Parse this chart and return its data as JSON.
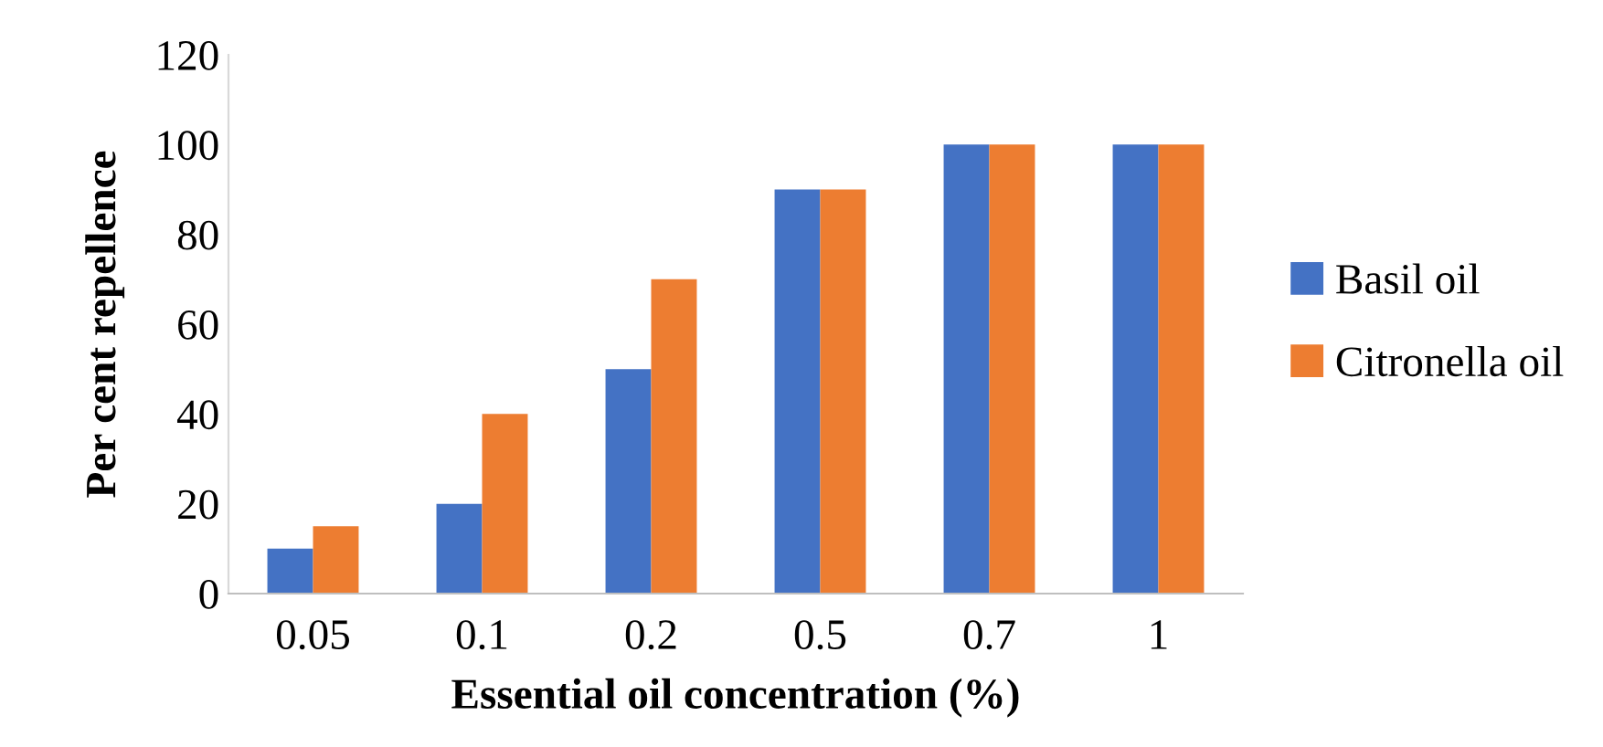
{
  "chart_data": {
    "type": "bar",
    "xlabel": "Essential oil concentration (%)",
    "ylabel": "Per cent repellence",
    "categories": [
      "0.05",
      "0.1",
      "0.2",
      "0.5",
      "0.7",
      "1"
    ],
    "series": [
      {
        "name": "Basil oil",
        "color": "#4472c4",
        "values": [
          10,
          20,
          50,
          90,
          100,
          100
        ]
      },
      {
        "name": "Citronella oil",
        "color": "#ed7d31",
        "values": [
          15,
          40,
          70,
          90,
          100,
          100
        ]
      }
    ],
    "ylim": [
      0,
      120
    ],
    "yticks": [
      0,
      20,
      40,
      60,
      80,
      100,
      120
    ],
    "grid": false,
    "legend": "right"
  }
}
